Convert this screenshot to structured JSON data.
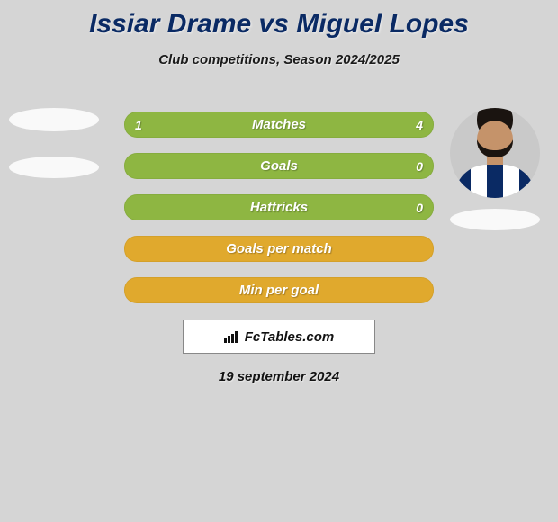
{
  "background_color": "#d5d5d5",
  "title": {
    "text": "Issiar Drame vs Miguel Lopes",
    "color": "#0a2a64",
    "fontsize": 30
  },
  "subtitle": {
    "text": "Club competitions, Season 2024/2025",
    "color": "#1b1b1b",
    "fontsize": 15
  },
  "player_left": {
    "has_photo": false,
    "placeholder_color": "#f9f9f9",
    "name_pill_color": "#f9f9f9"
  },
  "player_right": {
    "has_photo": true,
    "circle_bg": "#c9c9c9",
    "skin_color": "#c5936a",
    "hair_color": "#1a1410",
    "jersey_colors": [
      "#0a2a64",
      "#ffffff",
      "#0a2a64",
      "#ffffff",
      "#0a2a64"
    ],
    "name_pill_color": "#f9f9f9"
  },
  "stats": {
    "label_color": "#ffffff",
    "value_color": "#ffffff",
    "row_bg_green": "#8eb642",
    "row_bg_orange": "#e0a92d",
    "rows": [
      {
        "label": "Matches",
        "left": "1",
        "right": "4",
        "color_key": "green"
      },
      {
        "label": "Goals",
        "left": "",
        "right": "0",
        "color_key": "green"
      },
      {
        "label": "Hattricks",
        "left": "",
        "right": "0",
        "color_key": "green"
      },
      {
        "label": "Goals per match",
        "left": "",
        "right": "",
        "color_key": "orange"
      },
      {
        "label": "Min per goal",
        "left": "",
        "right": "",
        "color_key": "orange"
      }
    ]
  },
  "footer": {
    "brand_left": "Fc",
    "brand_right": "Tables.com",
    "box_bg": "#ffffff",
    "text_color": "#111111",
    "icon_color": "#111111"
  },
  "date": {
    "text": "19 september 2024",
    "color": "#121212"
  }
}
